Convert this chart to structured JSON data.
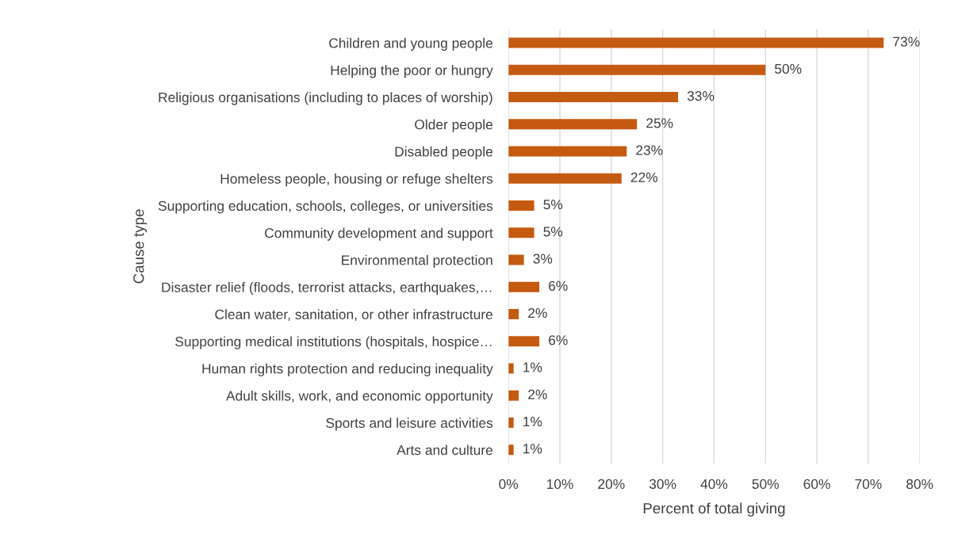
{
  "chart_data": {
    "type": "bar",
    "orientation": "horizontal",
    "xlabel": "Percent of total giving",
    "ylabel": "Cause type",
    "categories": [
      "Children and young people",
      "Helping the poor or hungry",
      "Religious organisations (including to places of worship)",
      "Older people",
      "Disabled people",
      "Homeless people, housing or refuge shelters",
      "Supporting education, schools, colleges, or universities",
      "Community development and support",
      "Environmental protection",
      "Disaster relief (floods, terrorist attacks, earthquakes,…",
      "Clean water, sanitation, or other infrastructure",
      "Supporting medical institutions (hospitals, hospice…",
      "Human rights protection and reducing inequality",
      "Adult skills, work, and economic opportunity",
      "Sports and leisure activities",
      "Arts and culture"
    ],
    "values": [
      73,
      50,
      33,
      25,
      23,
      22,
      5,
      5,
      3,
      6,
      2,
      6,
      1,
      2,
      1,
      1
    ],
    "value_labels": [
      "73%",
      "50%",
      "33%",
      "25%",
      "23%",
      "22%",
      "5%",
      "5%",
      "3%",
      "6%",
      "2%",
      "6%",
      "1%",
      "2%",
      "1%",
      "1%"
    ],
    "color": "#c55a11",
    "xlim": [
      0,
      80
    ],
    "xticks": [
      {
        "value": 0,
        "label": "0%"
      },
      {
        "value": 10,
        "label": "10%"
      },
      {
        "value": 20,
        "label": "20%"
      },
      {
        "value": 30,
        "label": "30%"
      },
      {
        "value": 40,
        "label": "40%"
      },
      {
        "value": 50,
        "label": "50%"
      },
      {
        "value": 60,
        "label": "60%"
      },
      {
        "value": 70,
        "label": "70%"
      },
      {
        "value": 80,
        "label": "80%"
      }
    ],
    "grid": "x",
    "legend": false
  }
}
